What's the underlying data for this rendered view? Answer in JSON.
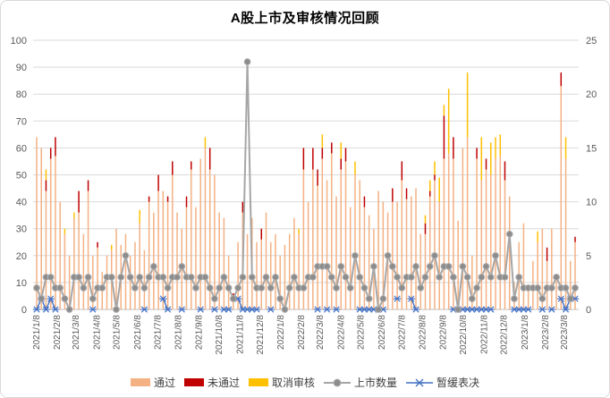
{
  "title": "A股上市及审核情况回顾",
  "legend": {
    "pass_label": "通过",
    "fail_label": "未通过",
    "cancel_label": "取消审核",
    "listed_label": "上市数量",
    "postponed_label": "暂缓表决"
  },
  "colors": {
    "pass": "#F4B183",
    "fail": "#C00000",
    "cancel": "#FFC000",
    "listed_line": "#A6A6A6",
    "listed_marker": "#8C8C8C",
    "listed_marker_edge": "#B3B3B3",
    "postponed": "#4472C4",
    "grid": "#D9D9D9",
    "axis_line": "#BFBFBF",
    "axis_text": "#595959",
    "title_text": "#000000"
  },
  "chart_data": {
    "type": "combo_stacked_bar_line_scatter",
    "title": "A股上市及审核情况回顾",
    "left_axis": {
      "min": 0,
      "max": 100,
      "step": 10,
      "applies_to": [
        "通过",
        "未通过",
        "取消审核"
      ]
    },
    "right_axis": {
      "min": 0,
      "max": 25,
      "step": 5,
      "applies_to": [
        "上市数量",
        "暂缓表决"
      ]
    },
    "x_axis": {
      "start": "2021/1/8",
      "interval": "weekly",
      "tick_labels": [
        "2021/1/8",
        "2021/2/8",
        "2021/3/8",
        "2021/4/8",
        "2021/5/8",
        "2021/6/8",
        "2021/7/8",
        "2021/8/8",
        "2021/9/8",
        "2021/10/8",
        "2021/11/8",
        "2021/12/8",
        "2022/1/8",
        "2022/2/8",
        "2022/3/8",
        "2022/4/8",
        "2022/5/8",
        "2022/6/8",
        "2022/7/8",
        "2022/8/8",
        "2022/9/8",
        "2022/10/8",
        "2022/11/8",
        "2022/12/8",
        "2023/1/8",
        "2023/2/8",
        "2023/3/8"
      ]
    },
    "stack_order": [
      "pass",
      "fail",
      "cancel"
    ],
    "legend_order": [
      "通过",
      "未通过",
      "取消审核",
      "上市数量",
      "暂缓表决"
    ],
    "grid": "horizontal-only",
    "legend_position": "bottom",
    "columns": [
      "date",
      "pass(通过,左轴)",
      "fail(未通过,左轴)",
      "cancel(取消审核,左轴)",
      "listed(上市数量,右轴)",
      "postponed(暂缓表决,右轴,null=无标记)"
    ],
    "rows": [
      [
        "2021/1/8",
        64,
        0,
        0,
        2,
        0
      ],
      [
        "2021/1/15",
        60,
        0,
        0,
        1,
        1
      ],
      [
        "2021/1/22",
        44,
        4,
        4,
        3,
        0
      ],
      [
        "2021/1/29",
        56,
        4,
        0,
        3,
        1
      ],
      [
        "2021/2/5",
        57,
        7,
        0,
        2,
        0
      ],
      [
        "2021/2/12",
        40,
        0,
        0,
        2,
        null
      ],
      [
        "2021/2/19",
        28,
        0,
        2,
        1,
        null
      ],
      [
        "2021/2/26",
        20,
        0,
        0,
        0,
        null
      ],
      [
        "2021/3/5",
        34,
        0,
        2,
        3,
        null
      ],
      [
        "2021/3/12",
        36,
        8,
        0,
        3,
        null
      ],
      [
        "2021/3/19",
        28,
        0,
        0,
        2,
        null
      ],
      [
        "2021/3/26",
        44,
        4,
        0,
        3,
        null
      ],
      [
        "2021/4/2",
        20,
        0,
        0,
        1,
        0
      ],
      [
        "2021/4/9",
        23,
        2,
        0,
        2,
        null
      ],
      [
        "2021/4/16",
        14,
        0,
        0,
        2,
        null
      ],
      [
        "2021/4/23",
        20,
        0,
        0,
        3,
        null
      ],
      [
        "2021/4/30",
        22,
        0,
        2,
        3,
        null
      ],
      [
        "2021/5/7",
        30,
        0,
        0,
        0,
        null
      ],
      [
        "2021/5/14",
        24,
        0,
        0,
        3,
        null
      ],
      [
        "2021/5/21",
        28,
        0,
        0,
        5,
        null
      ],
      [
        "2021/5/28",
        20,
        0,
        0,
        3,
        null
      ],
      [
        "2021/6/4",
        25,
        0,
        0,
        2,
        null
      ],
      [
        "2021/6/11",
        32,
        0,
        5,
        3,
        null
      ],
      [
        "2021/6/18",
        22,
        0,
        0,
        2,
        0
      ],
      [
        "2021/6/25",
        40,
        2,
        0,
        3,
        null
      ],
      [
        "2021/7/2",
        36,
        0,
        0,
        4,
        null
      ],
      [
        "2021/7/9",
        44,
        6,
        0,
        3,
        null
      ],
      [
        "2021/7/16",
        44,
        0,
        0,
        3,
        1
      ],
      [
        "2021/7/23",
        40,
        2,
        0,
        2,
        0
      ],
      [
        "2021/7/30",
        50,
        5,
        0,
        3,
        null
      ],
      [
        "2021/8/6",
        36,
        0,
        0,
        3,
        null
      ],
      [
        "2021/8/13",
        30,
        0,
        0,
        4,
        0
      ],
      [
        "2021/8/20",
        38,
        4,
        0,
        3,
        null
      ],
      [
        "2021/8/27",
        52,
        3,
        0,
        3,
        null
      ],
      [
        "2021/9/3",
        38,
        0,
        0,
        2,
        null
      ],
      [
        "2021/9/10",
        56,
        0,
        0,
        3,
        0
      ],
      [
        "2021/9/17",
        60,
        0,
        4,
        3,
        null
      ],
      [
        "2021/9/24",
        52,
        8,
        0,
        2,
        null
      ],
      [
        "2021/10/1",
        50,
        0,
        0,
        1,
        0
      ],
      [
        "2021/10/8",
        36,
        0,
        0,
        2,
        null
      ],
      [
        "2021/10/15",
        34,
        0,
        0,
        3,
        0
      ],
      [
        "2021/10/22",
        20,
        0,
        0,
        2,
        0
      ],
      [
        "2021/10/29",
        3,
        3,
        0,
        1,
        null
      ],
      [
        "2021/11/5",
        25,
        0,
        0,
        2,
        1
      ],
      [
        "2021/11/12",
        36,
        4,
        0,
        3,
        0
      ],
      [
        "2021/11/19",
        28,
        0,
        0,
        23,
        0
      ],
      [
        "2021/11/26",
        34,
        0,
        0,
        3,
        0
      ],
      [
        "2021/12/3",
        25,
        0,
        0,
        2,
        0
      ],
      [
        "2021/12/10",
        26,
        4,
        0,
        2,
        null
      ],
      [
        "2021/12/17",
        36,
        0,
        0,
        3,
        null
      ],
      [
        "2021/12/24",
        25,
        0,
        0,
        2,
        0
      ],
      [
        "2021/12/31",
        28,
        0,
        0,
        3,
        null
      ],
      [
        "2022/1/7",
        20,
        0,
        0,
        1,
        null
      ],
      [
        "2022/1/14",
        24,
        0,
        0,
        0,
        null
      ],
      [
        "2022/1/21",
        28,
        0,
        0,
        2,
        null
      ],
      [
        "2022/1/28",
        34,
        0,
        0,
        3,
        null
      ],
      [
        "2022/2/4",
        28,
        0,
        2,
        2,
        null
      ],
      [
        "2022/2/11",
        52,
        8,
        0,
        2,
        null
      ],
      [
        "2022/2/18",
        40,
        0,
        0,
        3,
        null
      ],
      [
        "2022/2/25",
        52,
        8,
        0,
        3,
        null
      ],
      [
        "2022/3/4",
        46,
        6,
        0,
        4,
        0
      ],
      [
        "2022/3/11",
        56,
        4,
        5,
        4,
        null
      ],
      [
        "2022/3/18",
        48,
        0,
        0,
        4,
        0
      ],
      [
        "2022/3/25",
        58,
        4,
        0,
        3,
        null
      ],
      [
        "2022/4/1",
        42,
        0,
        0,
        2,
        0
      ],
      [
        "2022/4/8",
        52,
        4,
        6,
        4,
        null
      ],
      [
        "2022/4/15",
        55,
        5,
        0,
        3,
        null
      ],
      [
        "2022/4/22",
        38,
        0,
        0,
        2,
        null
      ],
      [
        "2022/4/29",
        50,
        0,
        5,
        5,
        null
      ],
      [
        "2022/5/6",
        48,
        0,
        0,
        3,
        0
      ],
      [
        "2022/5/13",
        38,
        4,
        0,
        2,
        0
      ],
      [
        "2022/5/20",
        35,
        0,
        0,
        1,
        0
      ],
      [
        "2022/5/27",
        30,
        0,
        0,
        4,
        0
      ],
      [
        "2022/6/3",
        44,
        0,
        0,
        0,
        0
      ],
      [
        "2022/6/10",
        40,
        0,
        0,
        1,
        0
      ],
      [
        "2022/6/17",
        36,
        0,
        0,
        5,
        null
      ],
      [
        "2022/6/24",
        40,
        5,
        0,
        4,
        null
      ],
      [
        "2022/7/1",
        40,
        0,
        0,
        3,
        1
      ],
      [
        "2022/7/8",
        48,
        7,
        0,
        2,
        null
      ],
      [
        "2022/7/15",
        41,
        4,
        0,
        3,
        null
      ],
      [
        "2022/7/22",
        42,
        0,
        0,
        3,
        1
      ],
      [
        "2022/7/29",
        45,
        0,
        0,
        4,
        0
      ],
      [
        "2022/8/5",
        28,
        0,
        0,
        2,
        null
      ],
      [
        "2022/8/12",
        28,
        4,
        3,
        3,
        null
      ],
      [
        "2022/8/19",
        42,
        2,
        4,
        4,
        null
      ],
      [
        "2022/8/26",
        48,
        2,
        5,
        5,
        null
      ],
      [
        "2022/9/2",
        40,
        0,
        9,
        3,
        null
      ],
      [
        "2022/9/9",
        56,
        16,
        4,
        4,
        null
      ],
      [
        "2022/9/16",
        58,
        0,
        24,
        4,
        null
      ],
      [
        "2022/9/23",
        56,
        8,
        0,
        3,
        0
      ],
      [
        "2022/9/30",
        33,
        0,
        0,
        0,
        0
      ],
      [
        "2022/10/7",
        60,
        0,
        0,
        4,
        0
      ],
      [
        "2022/10/14",
        64,
        0,
        24,
        3,
        0
      ],
      [
        "2022/10/21",
        20,
        0,
        0,
        1,
        0
      ],
      [
        "2022/10/28",
        56,
        4,
        0,
        2,
        0
      ],
      [
        "2022/11/4",
        48,
        0,
        16,
        3,
        0
      ],
      [
        "2022/11/11",
        52,
        4,
        0,
        4,
        0
      ],
      [
        "2022/11/18",
        50,
        0,
        12,
        3,
        0
      ],
      [
        "2022/11/25",
        56,
        0,
        8,
        5,
        null
      ],
      [
        "2022/12/2",
        57,
        0,
        8,
        3,
        null
      ],
      [
        "2022/12/9",
        48,
        7,
        0,
        3,
        null
      ],
      [
        "2022/12/16",
        42,
        0,
        0,
        7,
        null
      ],
      [
        "2022/12/23",
        10,
        0,
        0,
        1,
        0
      ],
      [
        "2022/12/30",
        25,
        0,
        0,
        3,
        0
      ],
      [
        "2023/1/6",
        32,
        0,
        0,
        2,
        0
      ],
      [
        "2023/1/13",
        8,
        0,
        0,
        2,
        0
      ],
      [
        "2023/1/20",
        18,
        0,
        0,
        2,
        null
      ],
      [
        "2023/1/27",
        25,
        0,
        4,
        2,
        null
      ],
      [
        "2023/2/3",
        30,
        0,
        0,
        1,
        0
      ],
      [
        "2023/2/10",
        18,
        5,
        0,
        2,
        null
      ],
      [
        "2023/2/17",
        30,
        0,
        0,
        2,
        0
      ],
      [
        "2023/2/24",
        12,
        0,
        0,
        3,
        null
      ],
      [
        "2023/3/3",
        83,
        5,
        0,
        2,
        1
      ],
      [
        "2023/3/10",
        56,
        0,
        8,
        2,
        0
      ],
      [
        "2023/3/17",
        18,
        0,
        0,
        1,
        1
      ],
      [
        "2023/3/24",
        25,
        2,
        0,
        2,
        1
      ]
    ]
  }
}
